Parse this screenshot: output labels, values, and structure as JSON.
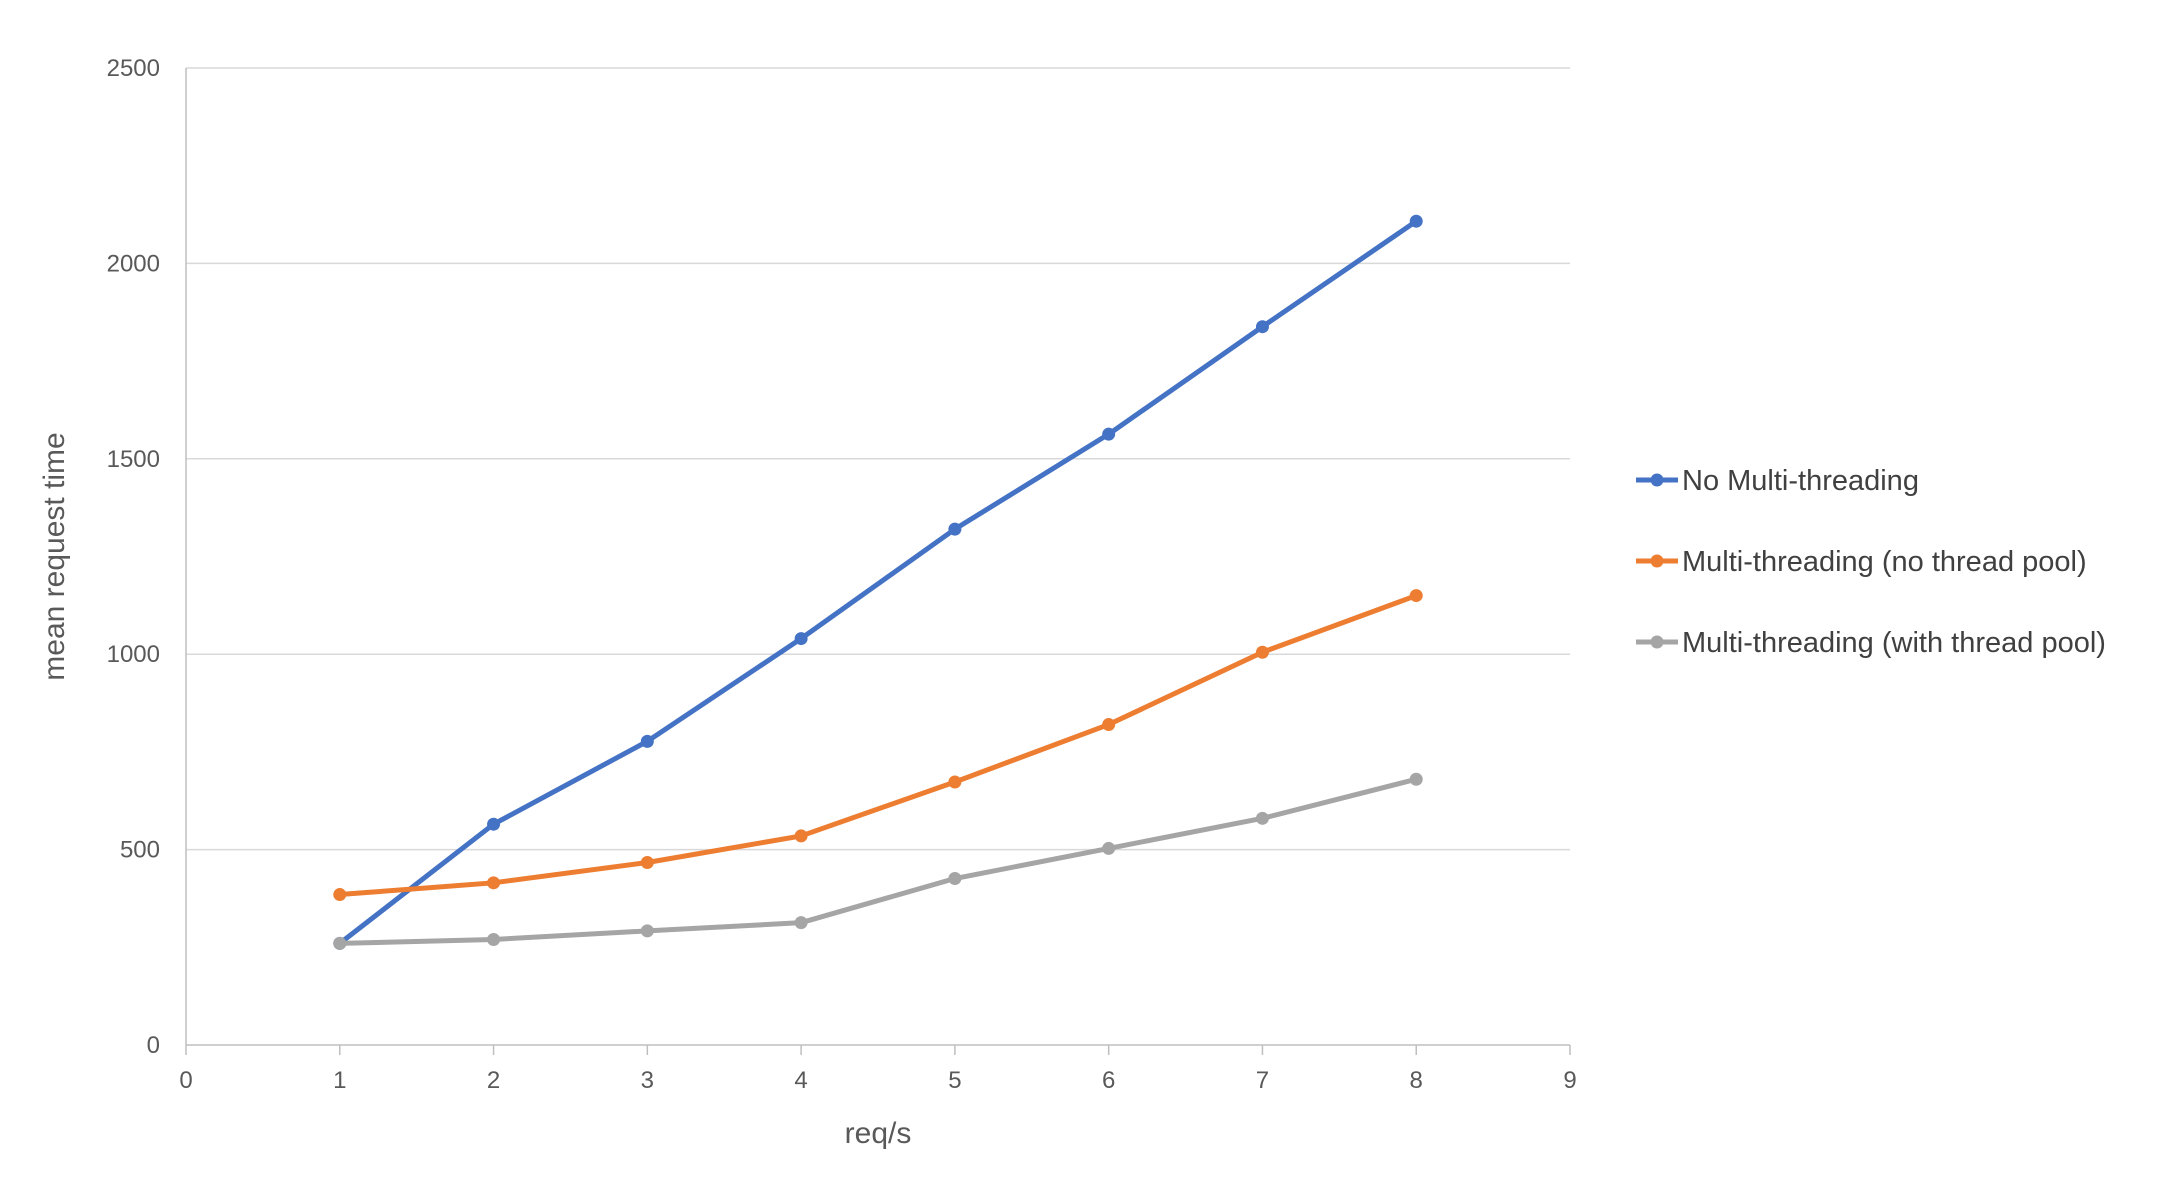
{
  "chart_data": {
    "type": "line",
    "title": "",
    "xlabel": "req/s",
    "ylabel": "mean request time",
    "xlim": [
      0,
      9
    ],
    "ylim": [
      0,
      2500
    ],
    "x_ticks": [
      "0",
      "1",
      "2",
      "3",
      "4",
      "5",
      "6",
      "7",
      "8",
      "9"
    ],
    "y_ticks": [
      "0",
      "500",
      "1000",
      "1500",
      "2000",
      "2500"
    ],
    "grid": "horizontal",
    "legend_position": "right",
    "x": [
      1,
      2,
      3,
      4,
      5,
      6,
      7,
      8
    ],
    "series": [
      {
        "name": "No Multi-threading",
        "color": "#4472C4",
        "values": [
          260,
          565,
          777,
          1040,
          1320,
          1563,
          1838,
          2108
        ]
      },
      {
        "name": "Multi-threading (no thread pool)",
        "color": "#ED7D31",
        "values": [
          385,
          415,
          467,
          535,
          673,
          820,
          1005,
          1150
        ]
      },
      {
        "name": "Multi-threading (with thread pool)",
        "color": "#A5A5A5",
        "values": [
          260,
          270,
          292,
          313,
          426,
          503,
          580,
          680
        ]
      }
    ]
  }
}
